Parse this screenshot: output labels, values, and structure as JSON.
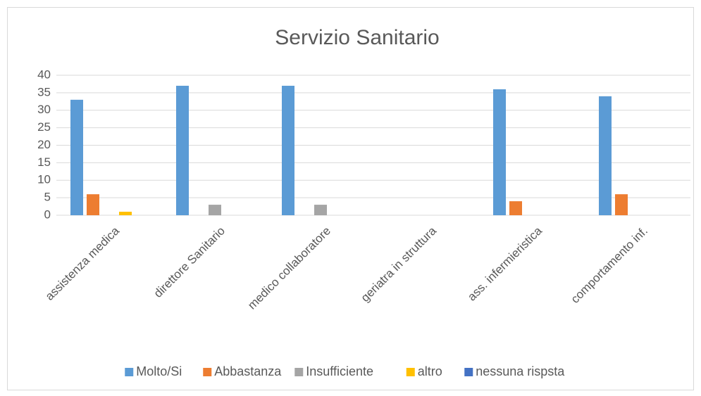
{
  "chart_data": {
    "type": "bar",
    "title": "Servizio Sanitario",
    "categories": [
      "assistenza medica",
      "direttore Sanitario",
      "medico collaboratore",
      "geriatra in struttura",
      "ass. infermieristica",
      "comportamento inf."
    ],
    "series": [
      {
        "name": "Molto/Si",
        "color": "#5b9bd5",
        "values": [
          33,
          37,
          37,
          0,
          36,
          34
        ]
      },
      {
        "name": "Abbastanza",
        "color": "#ed7d31",
        "values": [
          6,
          0,
          0,
          0,
          4,
          6
        ]
      },
      {
        "name": "Insufficiente",
        "color": "#a5a5a5",
        "values": [
          0,
          3,
          3,
          0,
          0,
          0
        ]
      },
      {
        "name": "altro",
        "color": "#ffc000",
        "values": [
          1,
          0,
          0,
          0,
          0,
          0
        ]
      },
      {
        "name": "nessuna rispsta",
        "color": "#4472c4",
        "values": [
          0,
          0,
          0,
          0,
          0,
          0
        ]
      }
    ],
    "ylim": [
      0,
      40
    ],
    "yticks": [
      0,
      5,
      10,
      15,
      20,
      25,
      30,
      35,
      40
    ],
    "grid": true,
    "legend": "bottom"
  }
}
